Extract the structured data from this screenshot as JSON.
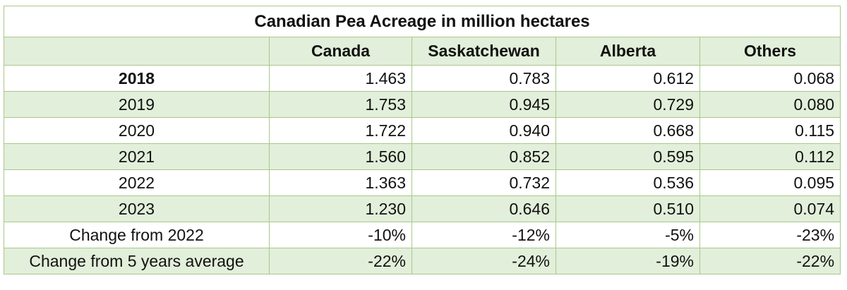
{
  "table": {
    "title": "Canadian Pea Acreage in million hectares",
    "columns": [
      "",
      "Canada",
      "Saskatchewan",
      "Alberta",
      "Others"
    ],
    "rows": [
      {
        "label": "2018",
        "values": [
          "1.463",
          "0.783",
          "0.612",
          "0.068"
        ],
        "bold": true
      },
      {
        "label": "2019",
        "values": [
          "1.753",
          "0.945",
          "0.729",
          "0.080"
        ]
      },
      {
        "label": "2020",
        "values": [
          "1.722",
          "0.940",
          "0.668",
          "0.115"
        ]
      },
      {
        "label": "2021",
        "values": [
          "1.560",
          "0.852",
          "0.595",
          "0.112"
        ]
      },
      {
        "label": "2022",
        "values": [
          "1.363",
          "0.732",
          "0.536",
          "0.095"
        ]
      },
      {
        "label": "2023",
        "values": [
          "1.230",
          "0.646",
          "0.510",
          "0.074"
        ]
      },
      {
        "label": "Change from 2022",
        "values": [
          "-10%",
          "-12%",
          "-5%",
          "-23%"
        ]
      },
      {
        "label": "Change from 5 years average",
        "values": [
          "-22%",
          "-24%",
          "-19%",
          "-22%"
        ]
      }
    ]
  },
  "colors": {
    "shade": "#e2efda",
    "border": "#a9c78a"
  }
}
